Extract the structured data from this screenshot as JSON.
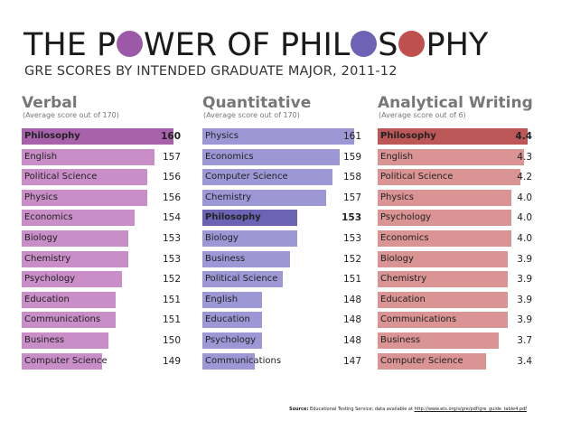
{
  "title": {
    "before": "THE P",
    "middle": "WER OF PHIL",
    "after1": "S",
    "after2": "PHY",
    "o_colors": [
      "#9b59a8",
      "#6c63b5",
      "#c0504d"
    ]
  },
  "subtitle": "GRE SCORES BY INTENDED GRADUATE MAJOR, 2011-12",
  "source": {
    "label": "Source:",
    "text": "Educational Testing Service; data available at",
    "url": "http://www.ets.org/s/gre/pdf/gre_guide_table4.pdf"
  },
  "chart_data": [
    {
      "type": "bar",
      "orientation": "horizontal",
      "title": "Verbal",
      "subtitle": "(Average score out of 170)",
      "color": "#c98ec7",
      "highlight_color": "#a862ab",
      "highlight": "Philosophy",
      "categories": [
        "Philosophy",
        "English",
        "Political Science",
        "Physics",
        "Economics",
        "Biology",
        "Chemistry",
        "Psychology",
        "Education",
        "Communications",
        "Business",
        "Computer Science"
      ],
      "values": [
        160,
        157,
        156,
        156,
        154,
        153,
        153,
        152,
        151,
        151,
        150,
        149
      ]
    },
    {
      "type": "bar",
      "orientation": "horizontal",
      "title": "Quantitative",
      "subtitle": "(Average score out of 170)",
      "color": "#9d97d6",
      "highlight_color": "#6c63b5",
      "highlight": "Philosophy",
      "categories": [
        "Physics",
        "Economics",
        "Computer Science",
        "Chemistry",
        "Philosophy",
        "Biology",
        "Business",
        "Political Science",
        "English",
        "Education",
        "Psychology",
        "Communications"
      ],
      "values": [
        161,
        159,
        158,
        157,
        153,
        153,
        152,
        151,
        148,
        148,
        148,
        147
      ]
    },
    {
      "type": "bar",
      "orientation": "horizontal",
      "title": "Analytical Writing",
      "subtitle": "(Average score out of 6)",
      "color": "#d99493",
      "highlight_color": "#bb5756",
      "highlight": "Philosophy",
      "categories": [
        "Philosophy",
        "English",
        "Political Science",
        "Physics",
        "Psychology",
        "Economics",
        "Biology",
        "Chemistry",
        "Education",
        "Communications",
        "Business",
        "Computer Science"
      ],
      "values": [
        "4.4",
        "4.3",
        "4.2",
        "4.0",
        "4.0",
        "4.0",
        "3.9",
        "3.9",
        "3.9",
        "3.9",
        "3.7",
        "3.4"
      ]
    }
  ]
}
